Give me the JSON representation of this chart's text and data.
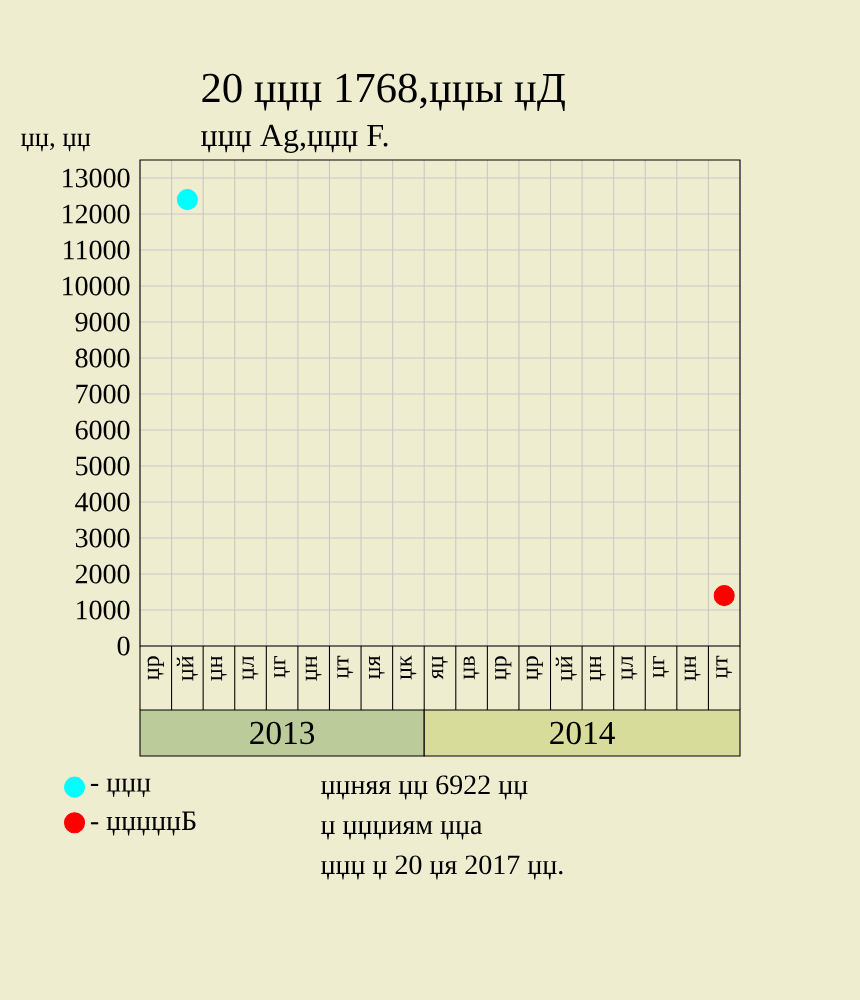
{
  "chart_data": {
    "type": "scatter",
    "title": "20 џџџ 1768,џџы џД",
    "subtitle": "џџџ Ag,џџџ F.",
    "ylabel": "џџ, џџ",
    "categories": [
      "џр",
      "џй",
      "џн",
      "џл",
      "џг",
      "џн",
      "џт",
      "џя",
      "џк",
      "яџ",
      "џв",
      "џр",
      "џр",
      "џй",
      "џн",
      "џл",
      "џг",
      "џн",
      "џт"
    ],
    "series": [
      {
        "name": "- џџџ",
        "color": "#00ffff",
        "values": [
          null,
          12400,
          null,
          null,
          null,
          null,
          null,
          null,
          null,
          null,
          null,
          null,
          null,
          null,
          null,
          null,
          null,
          null,
          null
        ]
      },
      {
        "name": "- џџџџџБ",
        "color": "#ff0000",
        "values": [
          null,
          null,
          null,
          null,
          null,
          null,
          null,
          null,
          null,
          null,
          null,
          null,
          null,
          null,
          null,
          null,
          null,
          null,
          1400
        ]
      }
    ],
    "ylim": [
      0,
      13500
    ],
    "yticks": [
      0,
      1000,
      2000,
      3000,
      4000,
      5000,
      6000,
      7000,
      8000,
      9000,
      10000,
      11000,
      12000,
      13000
    ],
    "annotations": [
      "2013",
      "2014",
      "џџняя џџ 6922 џџ",
      "џ џџџиям џџа",
      "џџџ џ 20 џя 2017 џџ."
    ],
    "grid": true,
    "legend": "bottom left",
    "marker": "circle"
  }
}
